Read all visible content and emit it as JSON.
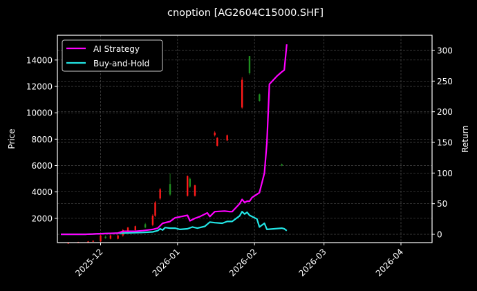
{
  "chart_data": {
    "type": "line",
    "title": "cnoption [AG2604C15000.SHF]",
    "xlabel": "",
    "ylabel": "Price",
    "ylabel_right": "Return",
    "ylim": [
      0,
      15500
    ],
    "ylim_right": [
      -15,
      320
    ],
    "grid": true,
    "legend_position": "upper left",
    "x_ticks": [
      "2025-12",
      "2026-01",
      "2026-02",
      "2026-03",
      "2026-04"
    ],
    "y_ticks_left": [
      2000,
      4000,
      6000,
      8000,
      10000,
      12000,
      14000
    ],
    "y_ticks_right": [
      0,
      50,
      100,
      150,
      200,
      250,
      300
    ],
    "colors": {
      "background": "#000000",
      "ai_strategy": "#ff00ff",
      "buy_and_hold": "#22e5e5",
      "candle_up": "#1f8f1f",
      "candle_down": "#ff1a1a",
      "grid": "#4a4a4a",
      "axes": "#ffffff"
    },
    "series": [
      {
        "name": "AI Strategy",
        "axis": "right",
        "points": [
          [
            "2025-11-15",
            0
          ],
          [
            "2025-11-25",
            0
          ],
          [
            "2025-12-01",
            1
          ],
          [
            "2025-12-08",
            2
          ],
          [
            "2025-12-10",
            5
          ],
          [
            "2025-12-15",
            5
          ],
          [
            "2025-12-18",
            6
          ],
          [
            "2025-12-22",
            8
          ],
          [
            "2025-12-24",
            10
          ],
          [
            "2025-12-26",
            18
          ],
          [
            "2025-12-29",
            21
          ],
          [
            "2025-12-31",
            27
          ],
          [
            "2026-01-05",
            31
          ],
          [
            "2026-01-06",
            22
          ],
          [
            "2026-01-08",
            26
          ],
          [
            "2026-01-10",
            29
          ],
          [
            "2026-01-13",
            35
          ],
          [
            "2026-01-14",
            29
          ],
          [
            "2026-01-16",
            37
          ],
          [
            "2026-01-20",
            38
          ],
          [
            "2026-01-22",
            37
          ],
          [
            "2026-01-23",
            37
          ],
          [
            "2026-01-26",
            50
          ],
          [
            "2026-01-27",
            57
          ],
          [
            "2026-01-28",
            52
          ],
          [
            "2026-01-29",
            54
          ],
          [
            "2026-01-30",
            54
          ],
          [
            "2026-01-31",
            60
          ],
          [
            "2026-02-03",
            68
          ],
          [
            "2026-02-05",
            100
          ],
          [
            "2026-02-06",
            150
          ],
          [
            "2026-02-07",
            245
          ],
          [
            "2026-02-10",
            258
          ],
          [
            "2026-02-12",
            265
          ],
          [
            "2026-02-13",
            268
          ],
          [
            "2026-02-14",
            310
          ]
        ]
      },
      {
        "name": "Buy-and-Hold",
        "axis": "right",
        "points": [
          [
            "2025-11-15",
            0
          ],
          [
            "2025-11-25",
            0
          ],
          [
            "2025-12-01",
            1
          ],
          [
            "2025-12-10",
            2
          ],
          [
            "2025-12-18",
            3
          ],
          [
            "2025-12-22",
            4
          ],
          [
            "2025-12-24",
            6
          ],
          [
            "2025-12-25",
            9
          ],
          [
            "2025-12-26",
            7
          ],
          [
            "2025-12-27",
            11
          ],
          [
            "2025-12-29",
            10
          ],
          [
            "2025-12-31",
            10
          ],
          [
            "2026-01-02",
            8
          ],
          [
            "2026-01-05",
            9
          ],
          [
            "2026-01-07",
            12
          ],
          [
            "2026-01-09",
            10
          ],
          [
            "2026-01-12",
            13
          ],
          [
            "2026-01-14",
            20
          ],
          [
            "2026-01-16",
            19
          ],
          [
            "2026-01-19",
            18
          ],
          [
            "2026-01-21",
            21
          ],
          [
            "2026-01-23",
            21
          ],
          [
            "2026-01-26",
            30
          ],
          [
            "2026-01-27",
            37
          ],
          [
            "2026-01-28",
            33
          ],
          [
            "2026-01-29",
            36
          ],
          [
            "2026-01-30",
            31
          ],
          [
            "2026-02-02",
            25
          ],
          [
            "2026-02-03",
            12
          ],
          [
            "2026-02-05",
            18
          ],
          [
            "2026-02-06",
            8
          ],
          [
            "2026-02-09",
            9
          ],
          [
            "2026-02-12",
            10
          ],
          [
            "2026-02-13",
            9
          ],
          [
            "2026-02-14",
            6
          ]
        ]
      }
    ],
    "candles": [
      {
        "date": "2025-11-18",
        "open": 150,
        "close": 120,
        "high": 170,
        "low": 100,
        "dir": "down"
      },
      {
        "date": "2025-11-22",
        "open": 200,
        "close": 150,
        "high": 220,
        "low": 130,
        "dir": "down"
      },
      {
        "date": "2025-11-26",
        "open": 250,
        "close": 200,
        "high": 280,
        "low": 180,
        "dir": "down"
      },
      {
        "date": "2025-11-28",
        "open": 300,
        "close": 250,
        "high": 330,
        "low": 220,
        "dir": "down"
      },
      {
        "date": "2025-12-01",
        "open": 700,
        "close": 250,
        "high": 750,
        "low": 200,
        "dir": "down"
      },
      {
        "date": "2025-12-03",
        "open": 500,
        "close": 600,
        "high": 700,
        "low": 450,
        "dir": "up"
      },
      {
        "date": "2025-12-05",
        "open": 700,
        "close": 450,
        "high": 750,
        "low": 400,
        "dir": "down"
      },
      {
        "date": "2025-12-08",
        "open": 700,
        "close": 450,
        "high": 750,
        "low": 400,
        "dir": "down"
      },
      {
        "date": "2025-12-10",
        "open": 1100,
        "close": 700,
        "high": 1200,
        "low": 600,
        "dir": "down"
      },
      {
        "date": "2025-12-12",
        "open": 1300,
        "close": 1000,
        "high": 1350,
        "low": 950,
        "dir": "down"
      },
      {
        "date": "2025-12-15",
        "open": 1400,
        "close": 1100,
        "high": 1450,
        "low": 1050,
        "dir": "down"
      },
      {
        "date": "2025-12-19",
        "open": 1300,
        "close": 1550,
        "high": 1650,
        "low": 1250,
        "dir": "up"
      },
      {
        "date": "2025-12-22",
        "open": 2200,
        "close": 1500,
        "high": 2300,
        "low": 1400,
        "dir": "down"
      },
      {
        "date": "2025-12-23",
        "open": 3200,
        "close": 2200,
        "high": 3300,
        "low": 2100,
        "dir": "down"
      },
      {
        "date": "2025-12-25",
        "open": 4200,
        "close": 3500,
        "high": 4300,
        "low": 3400,
        "dir": "down"
      },
      {
        "date": "2025-12-29",
        "open": 3800,
        "close": 4600,
        "high": 5400,
        "low": 3700,
        "dir": "up"
      },
      {
        "date": "2026-01-05",
        "open": 5200,
        "close": 3700,
        "high": 5250,
        "low": 3650,
        "dir": "down"
      },
      {
        "date": "2026-01-06",
        "open": 4400,
        "close": 5000,
        "high": 5100,
        "low": 4300,
        "dir": "up"
      },
      {
        "date": "2026-01-08",
        "open": 4500,
        "close": 3700,
        "high": 4550,
        "low": 3650,
        "dir": "down"
      },
      {
        "date": "2026-01-16",
        "open": 8500,
        "close": 8300,
        "high": 8600,
        "low": 8200,
        "dir": "down"
      },
      {
        "date": "2026-01-17",
        "open": 8100,
        "close": 7500,
        "high": 8150,
        "low": 7450,
        "dir": "down"
      },
      {
        "date": "2026-01-21",
        "open": 8300,
        "close": 7900,
        "high": 8350,
        "low": 7850,
        "dir": "down"
      },
      {
        "date": "2026-01-27",
        "open": 12500,
        "close": 10400,
        "high": 12700,
        "low": 10300,
        "dir": "down"
      },
      {
        "date": "2026-01-30",
        "open": 13000,
        "close": 14300,
        "high": 14300,
        "low": 12900,
        "dir": "up"
      },
      {
        "date": "2026-02-03",
        "open": 10900,
        "close": 11400,
        "high": 11450,
        "low": 10850,
        "dir": "up"
      },
      {
        "date": "2026-02-12",
        "open": 6000,
        "close": 6100,
        "high": 6150,
        "low": 5950,
        "dir": "up"
      }
    ]
  },
  "legend": {
    "items": [
      {
        "label": "AI Strategy",
        "color": "#ff00ff"
      },
      {
        "label": "Buy-and-Hold",
        "color": "#22e5e5"
      }
    ]
  }
}
